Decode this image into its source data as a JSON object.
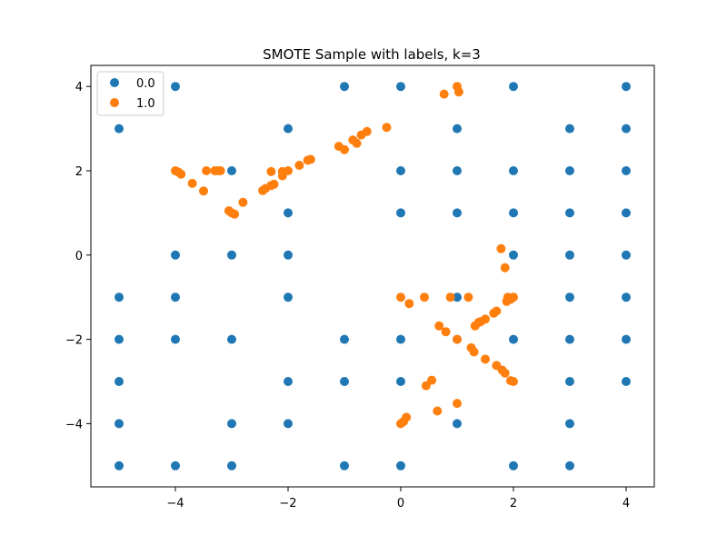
{
  "chart_data": {
    "type": "scatter",
    "title": "SMOTE Sample with labels, k=3",
    "xlabel": "",
    "ylabel": "",
    "xlim": [
      -5.5,
      4.5
    ],
    "ylim": [
      -5.5,
      4.5
    ],
    "xticks": [
      -4,
      -2,
      0,
      2,
      4
    ],
    "yticks": [
      -4,
      -2,
      0,
      2,
      4
    ],
    "legend_position": "top-left",
    "grid": false,
    "series": [
      {
        "name": "0.0",
        "color": "#1f77b4",
        "points": [
          [
            -4,
            4
          ],
          [
            -1,
            4
          ],
          [
            0,
            4
          ],
          [
            2,
            4
          ],
          [
            4,
            4
          ],
          [
            -5,
            3
          ],
          [
            -2,
            3
          ],
          [
            1,
            3
          ],
          [
            3,
            3
          ],
          [
            4,
            3
          ],
          [
            -3,
            2
          ],
          [
            0,
            2
          ],
          [
            1,
            2
          ],
          [
            2,
            2
          ],
          [
            3,
            2
          ],
          [
            4,
            2
          ],
          [
            -2,
            1
          ],
          [
            0,
            1
          ],
          [
            1,
            1
          ],
          [
            2,
            1
          ],
          [
            3,
            1
          ],
          [
            4,
            1
          ],
          [
            -4,
            0
          ],
          [
            -3,
            0
          ],
          [
            -2,
            0
          ],
          [
            2,
            0
          ],
          [
            3,
            0
          ],
          [
            4,
            0
          ],
          [
            -5,
            -1
          ],
          [
            -4,
            -1
          ],
          [
            -2,
            -1
          ],
          [
            1,
            -1
          ],
          [
            3,
            -1
          ],
          [
            4,
            -1
          ],
          [
            -5,
            -2
          ],
          [
            -4,
            -2
          ],
          [
            -3,
            -2
          ],
          [
            -1,
            -2
          ],
          [
            0,
            -2
          ],
          [
            1,
            -2
          ],
          [
            2,
            -2
          ],
          [
            3,
            -2
          ],
          [
            4,
            -2
          ],
          [
            -5,
            -3
          ],
          [
            -2,
            -3
          ],
          [
            -1,
            -3
          ],
          [
            0,
            -3
          ],
          [
            3,
            -3
          ],
          [
            4,
            -3
          ],
          [
            -5,
            -4
          ],
          [
            -3,
            -4
          ],
          [
            -2,
            -4
          ],
          [
            1,
            -4
          ],
          [
            3,
            -4
          ],
          [
            -5,
            -5
          ],
          [
            -4,
            -5
          ],
          [
            -3,
            -5
          ],
          [
            -1,
            -5
          ],
          [
            0,
            -5
          ],
          [
            2,
            -5
          ],
          [
            3,
            -5
          ]
        ]
      },
      {
        "name": "1.0",
        "color": "#ff7f0e",
        "points": [
          [
            0.77,
            3.82
          ],
          [
            1.0,
            4.0
          ],
          [
            1.03,
            3.87
          ],
          [
            -0.25,
            3.03
          ],
          [
            -0.6,
            2.93
          ],
          [
            -0.7,
            2.85
          ],
          [
            -0.85,
            2.73
          ],
          [
            -0.78,
            2.65
          ],
          [
            -1.1,
            2.58
          ],
          [
            -1.0,
            2.5
          ],
          [
            -1.6,
            2.27
          ],
          [
            -1.65,
            2.25
          ],
          [
            -1.8,
            2.13
          ],
          [
            -2.0,
            2.0
          ],
          [
            -2.1,
            1.98
          ],
          [
            -2.1,
            1.88
          ],
          [
            -2.3,
            1.98
          ],
          [
            -2.25,
            1.68
          ],
          [
            -2.3,
            1.65
          ],
          [
            -2.4,
            1.58
          ],
          [
            -2.45,
            1.53
          ],
          [
            -3.2,
            2.0
          ],
          [
            -3.25,
            2.0
          ],
          [
            -3.3,
            2.0
          ],
          [
            -3.45,
            2.0
          ],
          [
            -4.0,
            2.0
          ],
          [
            -3.95,
            1.97
          ],
          [
            -3.9,
            1.92
          ],
          [
            -3.7,
            1.7
          ],
          [
            -3.5,
            1.52
          ],
          [
            -2.8,
            1.25
          ],
          [
            -3.05,
            1.05
          ],
          [
            -3.0,
            1.0
          ],
          [
            -2.95,
            0.97
          ],
          [
            1.78,
            0.15
          ],
          [
            1.85,
            -0.3
          ],
          [
            0.0,
            -1.0
          ],
          [
            0.15,
            -1.15
          ],
          [
            0.42,
            -1.0
          ],
          [
            0.88,
            -1.0
          ],
          [
            1.2,
            -1.0
          ],
          [
            1.9,
            -1.0
          ],
          [
            1.95,
            -1.05
          ],
          [
            2.0,
            -1.0
          ],
          [
            1.88,
            -1.1
          ],
          [
            1.7,
            -1.33
          ],
          [
            1.65,
            -1.38
          ],
          [
            1.5,
            -1.52
          ],
          [
            1.42,
            -1.58
          ],
          [
            1.38,
            -1.6
          ],
          [
            1.32,
            -1.68
          ],
          [
            0.68,
            -1.68
          ],
          [
            0.8,
            -1.82
          ],
          [
            1.0,
            -2.0
          ],
          [
            1.25,
            -2.2
          ],
          [
            1.3,
            -2.3
          ],
          [
            1.5,
            -2.47
          ],
          [
            1.7,
            -2.62
          ],
          [
            1.8,
            -2.73
          ],
          [
            1.85,
            -2.8
          ],
          [
            1.95,
            -2.98
          ],
          [
            2.0,
            -3.0
          ],
          [
            0.55,
            -2.97
          ],
          [
            0.45,
            -3.1
          ],
          [
            1.0,
            -3.52
          ],
          [
            0.65,
            -3.7
          ],
          [
            0.1,
            -3.85
          ],
          [
            0.05,
            -3.95
          ],
          [
            0.0,
            -4.0
          ]
        ]
      }
    ]
  }
}
